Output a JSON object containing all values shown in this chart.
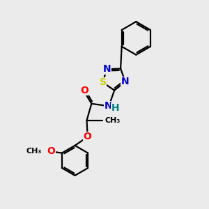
{
  "background_color": "#ebebeb",
  "bond_color": "#000000",
  "bond_width": 1.6,
  "atom_colors": {
    "N": "#0000cc",
    "O": "#ff0000",
    "S": "#cccc00",
    "H": "#008080",
    "C": "#000000"
  },
  "font_size_atom": 10,
  "font_size_small": 9
}
